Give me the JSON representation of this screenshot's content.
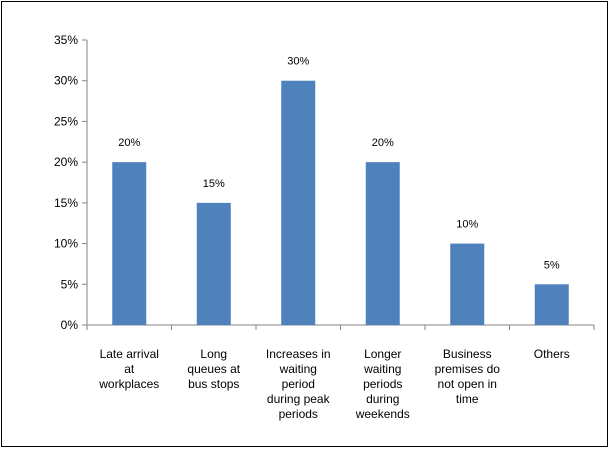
{
  "chart_data": {
    "type": "bar",
    "categories": [
      "Late arrival at workplaces",
      "Long queues at bus stops",
      "Increases in waiting period during peak periods",
      "Longer waiting periods during weekends",
      "Business premises do not open in time",
      "Others"
    ],
    "category_lines": [
      [
        "Late arrival",
        "at",
        "workplaces"
      ],
      [
        "Long",
        "queues at",
        "bus stops"
      ],
      [
        "Increases in",
        "waiting",
        "period",
        "during peak",
        "periods"
      ],
      [
        "Longer",
        "waiting",
        "periods",
        "during",
        "weekends"
      ],
      [
        "Business",
        "premises do",
        "not open in",
        "time"
      ],
      [
        "Others"
      ]
    ],
    "values": [
      20,
      15,
      30,
      20,
      10,
      5
    ],
    "data_labels": [
      "20%",
      "15%",
      "30%",
      "20%",
      "10%",
      "5%"
    ],
    "y_ticks": [
      "0%",
      "5%",
      "10%",
      "15%",
      "20%",
      "25%",
      "30%",
      "35%"
    ],
    "ylim": [
      0,
      35
    ],
    "y_unit": "%",
    "grid": false,
    "legend": "none",
    "title": "",
    "xlabel": "",
    "ylabel": "",
    "colors": {
      "bar": "#4f81bd",
      "axis": "#868686"
    }
  }
}
